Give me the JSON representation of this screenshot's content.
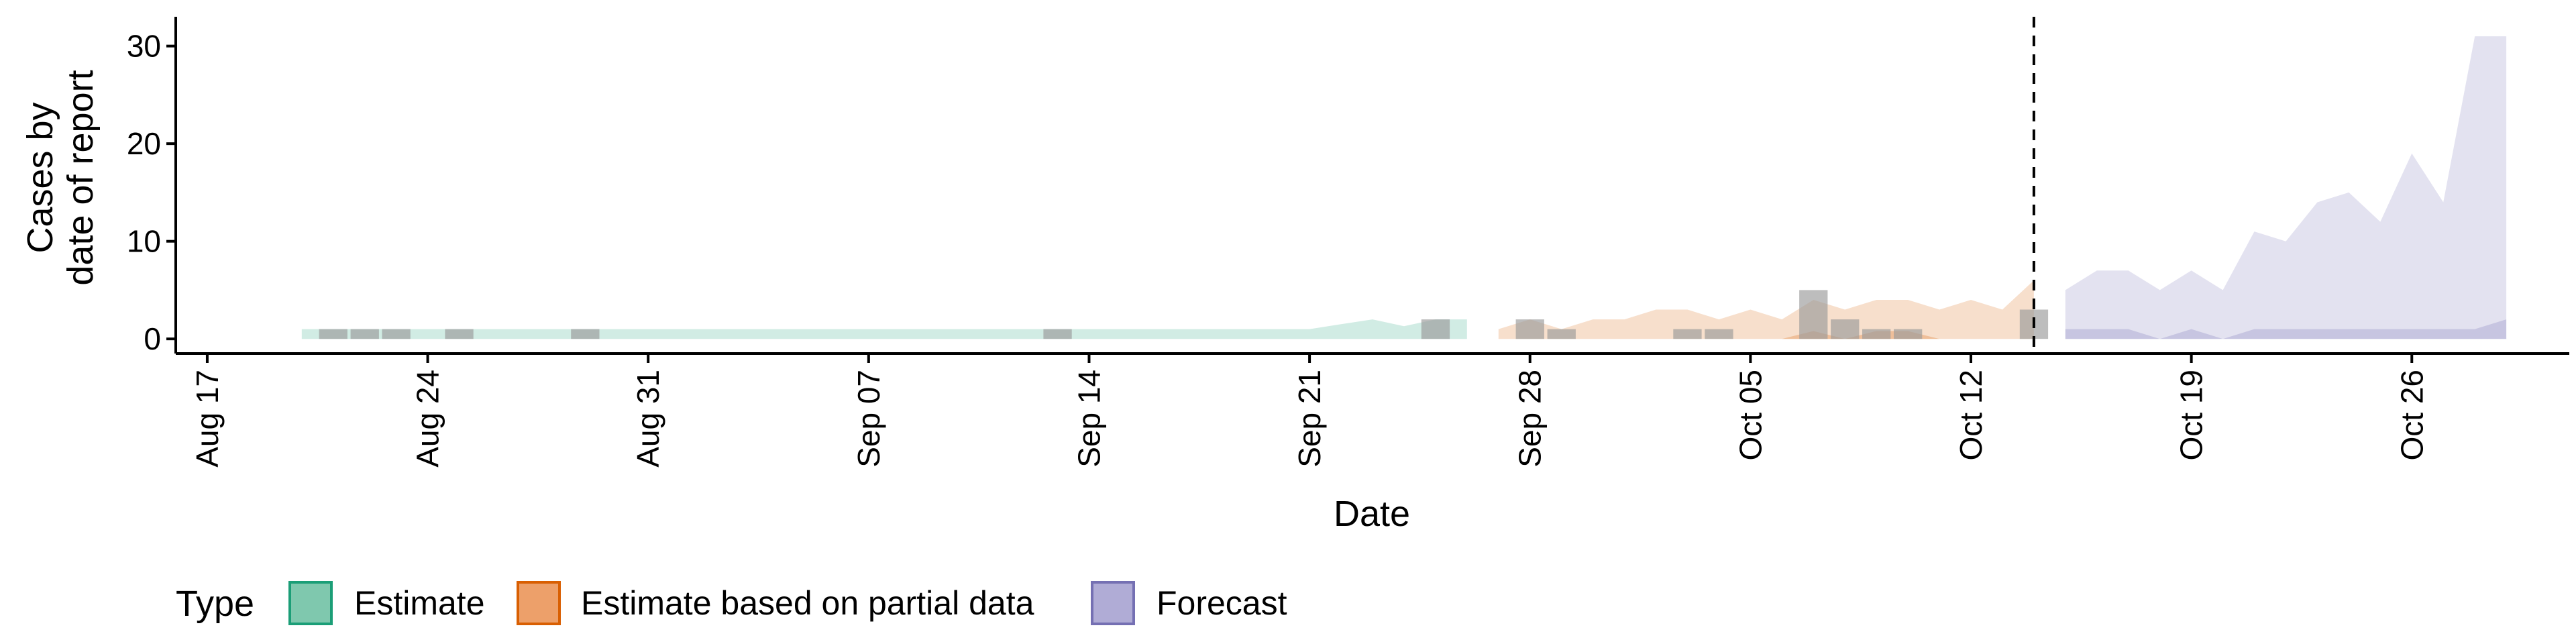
{
  "chart_data": {
    "type": "area",
    "xlabel": "Date",
    "ylabel_lines": [
      "Cases by",
      "date of report"
    ],
    "x_ticks": [
      "Aug 17",
      "Aug 24",
      "Aug 31",
      "Sep 07",
      "Sep 14",
      "Sep 21",
      "Sep 28",
      "Oct 05",
      "Oct 12",
      "Oct 19",
      "Oct 26"
    ],
    "x_tick_dates": [
      "2020-08-17",
      "2020-08-24",
      "2020-08-31",
      "2020-09-07",
      "2020-09-14",
      "2020-09-21",
      "2020-09-28",
      "2020-10-05",
      "2020-10-12",
      "2020-10-19",
      "2020-10-26"
    ],
    "xlim": [
      "2020-08-16",
      "2020-10-31"
    ],
    "y_ticks": [
      0,
      10,
      20,
      30
    ],
    "ylim": [
      -1.5,
      33
    ],
    "forecast_start": "2020-10-14",
    "grid": false,
    "legend": {
      "title": "Type",
      "position": "bottom",
      "items": [
        {
          "label": "Estimate",
          "fill": "#7fc8ae",
          "stroke": "#1b9e77"
        },
        {
          "label": "Estimate based on partial data",
          "fill": "#eda06a",
          "stroke": "#d95f02"
        },
        {
          "label": "Forecast",
          "fill": "#b0acd6",
          "stroke": "#7570b3"
        }
      ]
    },
    "series": [
      {
        "name": "Estimate",
        "color": "#1b9e77",
        "x": [
          "2020-08-20",
          "2020-08-21",
          "2020-08-22",
          "2020-08-23",
          "2020-08-24",
          "2020-08-25",
          "2020-08-26",
          "2020-08-27",
          "2020-08-28",
          "2020-08-29",
          "2020-08-30",
          "2020-08-31",
          "2020-09-01",
          "2020-09-02",
          "2020-09-03",
          "2020-09-04",
          "2020-09-05",
          "2020-09-06",
          "2020-09-07",
          "2020-09-08",
          "2020-09-09",
          "2020-09-10",
          "2020-09-11",
          "2020-09-12",
          "2020-09-13",
          "2020-09-14",
          "2020-09-15",
          "2020-09-16",
          "2020-09-17",
          "2020-09-18",
          "2020-09-19",
          "2020-09-20",
          "2020-09-21",
          "2020-09-22",
          "2020-09-23",
          "2020-09-24",
          "2020-09-25",
          "2020-09-26"
        ],
        "lower": [
          0,
          0,
          0,
          0,
          0,
          0,
          0,
          0,
          0,
          0,
          0,
          0,
          0,
          0,
          0,
          0,
          0,
          0,
          0,
          0,
          0,
          0,
          0,
          0,
          0,
          0,
          0,
          0,
          0,
          0,
          0,
          0,
          0,
          0,
          0,
          0,
          0,
          0
        ],
        "upper": [
          1,
          1,
          1,
          1,
          1,
          1,
          1,
          1,
          1,
          1,
          1,
          1,
          1,
          1,
          1,
          1,
          1,
          1,
          1,
          1,
          1,
          1,
          1,
          1,
          1,
          1,
          1,
          1,
          1,
          1,
          1,
          1,
          1,
          1.5,
          2,
          1.3,
          2,
          2
        ]
      },
      {
        "name": "Estimate based on partial data",
        "color": "#d95f02",
        "x": [
          "2020-09-27",
          "2020-09-28",
          "2020-09-29",
          "2020-09-30",
          "2020-10-01",
          "2020-10-02",
          "2020-10-03",
          "2020-10-04",
          "2020-10-05",
          "2020-10-06",
          "2020-10-07",
          "2020-10-08",
          "2020-10-09",
          "2020-10-10",
          "2020-10-11",
          "2020-10-12",
          "2020-10-13",
          "2020-10-14"
        ],
        "lower": [
          0,
          0,
          0,
          0,
          0,
          0,
          0,
          0,
          0,
          0,
          0,
          0,
          0,
          0,
          0,
          0,
          0,
          0
        ],
        "upper": [
          1,
          2,
          1,
          2,
          2,
          3,
          3,
          2,
          3,
          2,
          4,
          3,
          4,
          4,
          3,
          4,
          3,
          6
        ],
        "inner_upper": [
          0,
          0,
          0,
          0,
          0,
          0,
          0,
          0,
          0,
          0,
          0.8,
          0,
          0.8,
          0.8,
          0,
          0,
          0,
          0
        ]
      },
      {
        "name": "Forecast",
        "color": "#7570b3",
        "x": [
          "2020-10-15",
          "2020-10-16",
          "2020-10-17",
          "2020-10-18",
          "2020-10-19",
          "2020-10-20",
          "2020-10-21",
          "2020-10-22",
          "2020-10-23",
          "2020-10-24",
          "2020-10-25",
          "2020-10-26",
          "2020-10-27",
          "2020-10-28",
          "2020-10-29"
        ],
        "lower": [
          0,
          0,
          0,
          0,
          0,
          0,
          0,
          0,
          0,
          0,
          0,
          0,
          0,
          0,
          0
        ],
        "upper": [
          5,
          7,
          7,
          5,
          7,
          5,
          11,
          10,
          14,
          15,
          12,
          19,
          14,
          31,
          31
        ],
        "inner_upper": [
          1,
          1,
          1,
          0,
          1,
          0,
          1,
          1,
          1,
          1,
          1,
          1,
          1,
          1,
          2
        ]
      }
    ],
    "reported_cases": {
      "color": "#999999",
      "x": [
        "2020-08-21",
        "2020-08-22",
        "2020-08-23",
        "2020-08-25",
        "2020-08-29",
        "2020-09-13",
        "2020-09-25",
        "2020-09-28",
        "2020-09-29",
        "2020-10-03",
        "2020-10-04",
        "2020-10-07",
        "2020-10-08",
        "2020-10-09",
        "2020-10-10",
        "2020-10-14"
      ],
      "values": [
        1,
        1,
        1,
        1,
        1,
        1,
        2,
        2,
        1,
        1,
        1,
        5,
        2,
        1,
        1,
        3
      ]
    }
  }
}
